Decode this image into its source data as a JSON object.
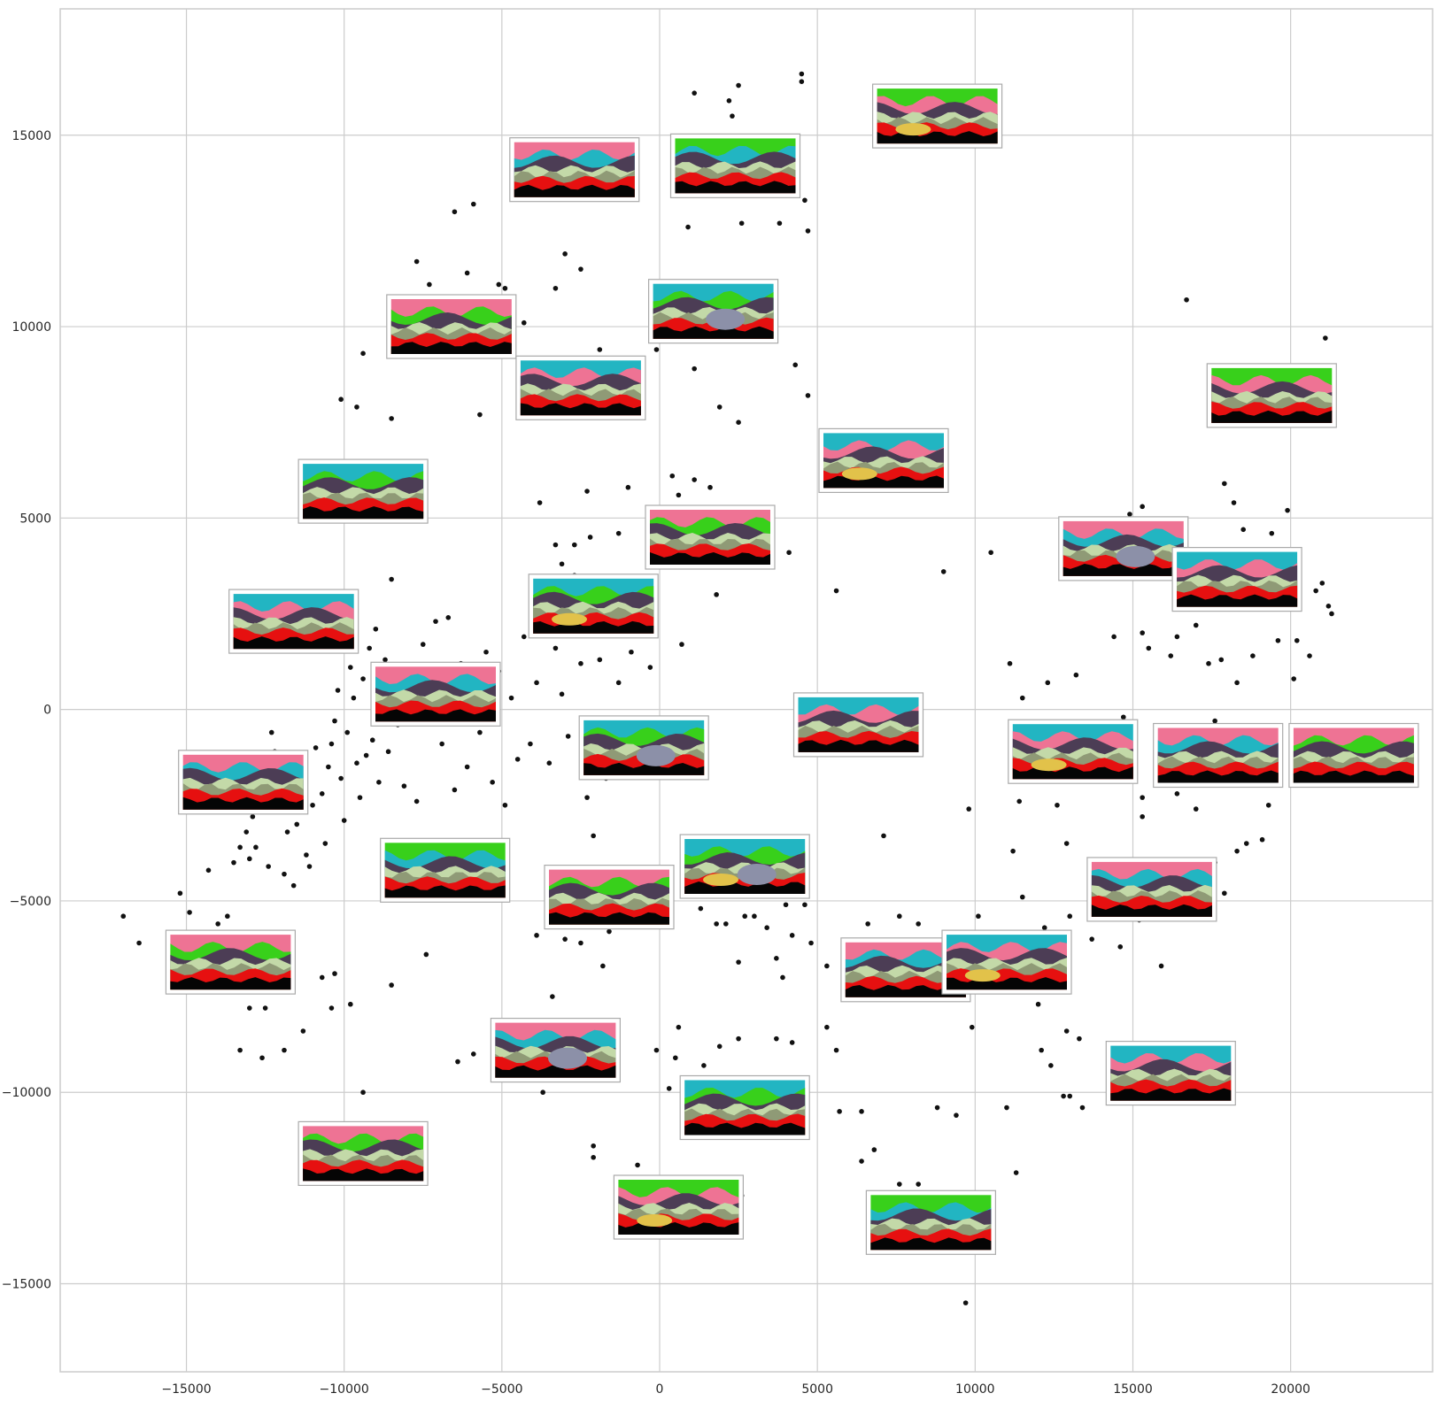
{
  "chart_data": {
    "type": "scatter",
    "title": "",
    "xlabel": "",
    "ylabel": "",
    "xlim": [
      -19000,
      24500
    ],
    "ylim": [
      -17300,
      18300
    ],
    "grid": true,
    "x_ticks": [
      -15000,
      -10000,
      -5000,
      0,
      5000,
      10000,
      15000,
      20000
    ],
    "y_ticks": [
      -15000,
      -10000,
      -5000,
      0,
      5000,
      10000,
      15000
    ],
    "x_tick_labels": [
      "−15000",
      "−10000",
      "−5000",
      "0",
      "5000",
      "10000",
      "15000",
      "20000"
    ],
    "y_tick_labels": [
      "−15000",
      "−10000",
      "−5000",
      "0",
      "5000",
      "10000",
      "15000"
    ],
    "colors": {
      "background": "#ffffff",
      "grid": "#cccccc",
      "axes_edge": "#cccccc",
      "point": "#111111",
      "thumbnail_frame": "#aaaaaa",
      "palette": {
        "sky_pink": "#ee7394",
        "sky_teal": "#22b5c2",
        "tree_green": "#38d01b",
        "mountain_purple": "#4c3d55",
        "grass_light": "#c3d9a8",
        "field_olive": "#8f9a76",
        "water_red": "#e61010",
        "ground_black": "#050505",
        "rock_slate": "#8c90a8",
        "sand_yellow": "#e2c24a"
      }
    },
    "points": [
      [
        -17000,
        -5400
      ],
      [
        -16500,
        -6100
      ],
      [
        -15200,
        -4800
      ],
      [
        -14900,
        -5300
      ],
      [
        -14300,
        -4200
      ],
      [
        -14000,
        -5600
      ],
      [
        -13700,
        -5400
      ],
      [
        -13500,
        -4000
      ],
      [
        -13300,
        -3600
      ],
      [
        -13100,
        -3200
      ],
      [
        -13000,
        -3900
      ],
      [
        -12900,
        -2800
      ],
      [
        -12800,
        -3600
      ],
      [
        -12600,
        -2100
      ],
      [
        -12400,
        -4100
      ],
      [
        -12300,
        -600
      ],
      [
        -12200,
        -1100
      ],
      [
        -12100,
        -2600
      ],
      [
        -12000,
        -1700
      ],
      [
        -11900,
        -4300
      ],
      [
        -11800,
        -3200
      ],
      [
        -11700,
        -2400
      ],
      [
        -11600,
        -4600
      ],
      [
        -11500,
        -3000
      ],
      [
        -11400,
        -1400
      ],
      [
        -11300,
        -2000
      ],
      [
        -11200,
        -3800
      ],
      [
        -11100,
        -4100
      ],
      [
        -11000,
        -2500
      ],
      [
        -10900,
        -1000
      ],
      [
        -10700,
        -2200
      ],
      [
        -10600,
        -3500
      ],
      [
        -10500,
        -1500
      ],
      [
        -10400,
        -900
      ],
      [
        -10300,
        -300
      ],
      [
        -10200,
        500
      ],
      [
        -10100,
        -1800
      ],
      [
        -10000,
        -2900
      ],
      [
        -9900,
        -600
      ],
      [
        -9800,
        1100
      ],
      [
        -9700,
        300
      ],
      [
        -9600,
        -1400
      ],
      [
        -9500,
        -2300
      ],
      [
        -9400,
        800
      ],
      [
        -9300,
        -1200
      ],
      [
        -9200,
        1600
      ],
      [
        -9100,
        -800
      ],
      [
        -9000,
        2100
      ],
      [
        -8900,
        -1900
      ],
      [
        -8800,
        -300
      ],
      [
        -8700,
        1300
      ],
      [
        -8600,
        -1100
      ],
      [
        -8500,
        3400
      ],
      [
        -8300,
        -400
      ],
      [
        -8100,
        -2000
      ],
      [
        -7900,
        600
      ],
      [
        -7700,
        -2400
      ],
      [
        -7500,
        1700
      ],
      [
        -7300,
        -300
      ],
      [
        -7100,
        2300
      ],
      [
        -6900,
        -900
      ],
      [
        -6700,
        2400
      ],
      [
        -6500,
        -2100
      ],
      [
        -6300,
        1200
      ],
      [
        -6100,
        -1500
      ],
      [
        -5900,
        800
      ],
      [
        -5700,
        -600
      ],
      [
        -5500,
        1500
      ],
      [
        -5300,
        -1900
      ],
      [
        -5100,
        1000
      ],
      [
        -4900,
        -2500
      ],
      [
        -4700,
        300
      ],
      [
        -4500,
        -1300
      ],
      [
        -4300,
        1900
      ],
      [
        -4100,
        -900
      ],
      [
        -3900,
        700
      ],
      [
        -3700,
        2600
      ],
      [
        -3500,
        -1400
      ],
      [
        -3300,
        1600
      ],
      [
        -3100,
        400
      ],
      [
        -2900,
        -700
      ],
      [
        -2700,
        3500
      ],
      [
        -2500,
        1200
      ],
      [
        -2300,
        -2300
      ],
      [
        -2100,
        -3300
      ],
      [
        -1900,
        1300
      ],
      [
        -1700,
        -1800
      ],
      [
        -1500,
        -500
      ],
      [
        -1300,
        700
      ],
      [
        -1100,
        -1300
      ],
      [
        -900,
        1500
      ],
      [
        -700,
        -800
      ],
      [
        -500,
        2500
      ],
      [
        -300,
        1100
      ],
      [
        -100,
        -900
      ],
      [
        -12600,
        -9100
      ],
      [
        -11900,
        -8900
      ],
      [
        -11300,
        -8400
      ],
      [
        -10700,
        -7000
      ],
      [
        -10400,
        -7800
      ],
      [
        -9800,
        -7700
      ],
      [
        -9400,
        -10000
      ],
      [
        -8500,
        -7200
      ],
      [
        -7400,
        -6400
      ],
      [
        -6400,
        -9200
      ],
      [
        -5900,
        -9000
      ],
      [
        -3700,
        -10000
      ],
      [
        -2100,
        -11700
      ],
      [
        -10300,
        -6900
      ],
      [
        -13000,
        -7800
      ],
      [
        -12500,
        -7800
      ],
      [
        -13300,
        -8900
      ],
      [
        -10100,
        8100
      ],
      [
        -9600,
        7900
      ],
      [
        -9400,
        9300
      ],
      [
        -8500,
        7600
      ],
      [
        -7700,
        11700
      ],
      [
        -7300,
        11100
      ],
      [
        -6500,
        13000
      ],
      [
        -6100,
        11400
      ],
      [
        -5900,
        13200
      ],
      [
        -5100,
        11100
      ],
      [
        -4300,
        10100
      ],
      [
        -3300,
        11000
      ],
      [
        -3000,
        11900
      ],
      [
        -2500,
        11500
      ],
      [
        -5700,
        7700
      ],
      [
        -4900,
        11000
      ],
      [
        -1900,
        9400
      ],
      [
        -2400,
        8400
      ],
      [
        1100,
        16100
      ],
      [
        2200,
        15900
      ],
      [
        2300,
        15500
      ],
      [
        2500,
        16300
      ],
      [
        4500,
        16400
      ],
      [
        4500,
        16600
      ],
      [
        3800,
        12700
      ],
      [
        4600,
        13300
      ],
      [
        4700,
        12500
      ],
      [
        900,
        12600
      ],
      [
        2600,
        12700
      ],
      [
        1100,
        8900
      ],
      [
        1900,
        7900
      ],
      [
        2500,
        7500
      ],
      [
        4300,
        9000
      ],
      [
        4700,
        8200
      ],
      [
        -100,
        9400
      ],
      [
        400,
        6100
      ],
      [
        -1000,
        5800
      ],
      [
        -1300,
        4600
      ],
      [
        -2200,
        4500
      ],
      [
        -2700,
        4300
      ],
      [
        -3100,
        3800
      ],
      [
        -3300,
        4300
      ],
      [
        -3800,
        5400
      ],
      [
        -2300,
        5700
      ],
      [
        1100,
        6000
      ],
      [
        1600,
        5800
      ],
      [
        600,
        5600
      ],
      [
        4100,
        4100
      ],
      [
        5600,
        3100
      ],
      [
        9000,
        3600
      ],
      [
        10500,
        4100
      ],
      [
        1800,
        3000
      ],
      [
        700,
        1700
      ],
      [
        11100,
        1200
      ],
      [
        11500,
        300
      ],
      [
        12300,
        700
      ],
      [
        13200,
        900
      ],
      [
        14400,
        1900
      ],
      [
        15300,
        2000
      ],
      [
        15500,
        1600
      ],
      [
        16400,
        1900
      ],
      [
        16200,
        1400
      ],
      [
        17000,
        2200
      ],
      [
        17400,
        1200
      ],
      [
        17800,
        1300
      ],
      [
        18300,
        700
      ],
      [
        18800,
        1400
      ],
      [
        19600,
        1800
      ],
      [
        20200,
        1800
      ],
      [
        20600,
        1400
      ],
      [
        21000,
        3300
      ],
      [
        21200,
        2700
      ],
      [
        21300,
        2500
      ],
      [
        20800,
        3100
      ],
      [
        19400,
        4600
      ],
      [
        18500,
        4700
      ],
      [
        17900,
        5900
      ],
      [
        18200,
        5400
      ],
      [
        18700,
        3800
      ],
      [
        19900,
        5200
      ],
      [
        15300,
        5300
      ],
      [
        14900,
        5100
      ],
      [
        16700,
        10700
      ],
      [
        21100,
        9700
      ],
      [
        20100,
        800
      ],
      [
        14700,
        -200
      ],
      [
        15000,
        -1800
      ],
      [
        15300,
        -2300
      ],
      [
        15300,
        -2800
      ],
      [
        16400,
        -2200
      ],
      [
        16700,
        -1300
      ],
      [
        17000,
        -2600
      ],
      [
        17600,
        -300
      ],
      [
        18000,
        -1800
      ],
      [
        18300,
        -3700
      ],
      [
        18600,
        -3500
      ],
      [
        19100,
        -3400
      ],
      [
        19300,
        -2500
      ],
      [
        17600,
        -4000
      ],
      [
        17900,
        -4800
      ],
      [
        12900,
        -3500
      ],
      [
        12600,
        -2500
      ],
      [
        11400,
        -2400
      ],
      [
        11200,
        -3700
      ],
      [
        11500,
        -4900
      ],
      [
        12200,
        -5700
      ],
      [
        13000,
        -5400
      ],
      [
        13700,
        -6000
      ],
      [
        14600,
        -6200
      ],
      [
        15100,
        -4400
      ],
      [
        15900,
        -6700
      ],
      [
        15200,
        -5500
      ],
      [
        10100,
        -5400
      ],
      [
        10200,
        -6300
      ],
      [
        9200,
        -6400
      ],
      [
        8600,
        -6500
      ],
      [
        8200,
        -5600
      ],
      [
        7600,
        -5400
      ],
      [
        6600,
        -5600
      ],
      [
        5900,
        -7000
      ],
      [
        5300,
        -6700
      ],
      [
        4800,
        -6100
      ],
      [
        4200,
        -5900
      ],
      [
        3900,
        -7000
      ],
      [
        3700,
        -6500
      ],
      [
        3400,
        -5700
      ],
      [
        3000,
        -5400
      ],
      [
        2700,
        -5400
      ],
      [
        2100,
        -5600
      ],
      [
        1800,
        -5600
      ],
      [
        1300,
        -5200
      ],
      [
        4000,
        -5100
      ],
      [
        4600,
        -5100
      ],
      [
        7100,
        -3300
      ],
      [
        9800,
        -2600
      ],
      [
        2500,
        -6600
      ],
      [
        2500,
        -8600
      ],
      [
        1900,
        -8800
      ],
      [
        1400,
        -9300
      ],
      [
        600,
        -8300
      ],
      [
        500,
        -9100
      ],
      [
        300,
        -9900
      ],
      [
        1600,
        -11000
      ],
      [
        3700,
        -8600
      ],
      [
        4200,
        -8700
      ],
      [
        5300,
        -8300
      ],
      [
        5600,
        -8900
      ],
      [
        5700,
        -10500
      ],
      [
        6400,
        -10500
      ],
      [
        6800,
        -11500
      ],
      [
        6400,
        -11800
      ],
      [
        7600,
        -12400
      ],
      [
        8800,
        -10400
      ],
      [
        9400,
        -10600
      ],
      [
        8200,
        -12400
      ],
      [
        11000,
        -10400
      ],
      [
        11300,
        -12100
      ],
      [
        12100,
        -8900
      ],
      [
        12400,
        -9300
      ],
      [
        12800,
        -10100
      ],
      [
        13300,
        -8600
      ],
      [
        12900,
        -8400
      ],
      [
        13000,
        -10100
      ],
      [
        13400,
        -10400
      ],
      [
        12000,
        -7700
      ],
      [
        11200,
        -7300
      ],
      [
        10700,
        -7100
      ],
      [
        9900,
        -8300
      ],
      [
        9700,
        -15500
      ],
      [
        -100,
        -8900
      ],
      [
        -700,
        -11900
      ],
      [
        1300,
        -12800
      ],
      [
        2600,
        -12700
      ],
      [
        -2100,
        -11400
      ],
      [
        -1800,
        -6700
      ],
      [
        -2500,
        -6100
      ],
      [
        -3400,
        -7500
      ],
      [
        -3900,
        -5900
      ],
      [
        -3000,
        -6000
      ],
      [
        -1600,
        -5800
      ]
    ],
    "thumbnails": [
      {
        "x": -2700,
        "y": 14100,
        "sky": "sky_pink"
      },
      {
        "x": 2400,
        "y": 14200,
        "sky": "tree_green"
      },
      {
        "x": 8800,
        "y": 15500,
        "sky": "tree_green"
      },
      {
        "x": -6600,
        "y": 10000,
        "sky": "sky_pink"
      },
      {
        "x": 1700,
        "y": 10400,
        "sky": "sky_teal"
      },
      {
        "x": -2500,
        "y": 8400,
        "sky": "sky_teal"
      },
      {
        "x": 19400,
        "y": 8200,
        "sky": "tree_green"
      },
      {
        "x": 7100,
        "y": 6500,
        "sky": "sky_teal"
      },
      {
        "x": -9400,
        "y": 5700,
        "sky": "sky_teal"
      },
      {
        "x": 1600,
        "y": 4500,
        "sky": "sky_pink"
      },
      {
        "x": 14700,
        "y": 4200,
        "sky": "sky_pink"
      },
      {
        "x": 18300,
        "y": 3400,
        "sky": "sky_teal"
      },
      {
        "x": -2100,
        "y": 2700,
        "sky": "sky_teal"
      },
      {
        "x": -11600,
        "y": 2300,
        "sky": "sky_teal"
      },
      {
        "x": -7100,
        "y": 400,
        "sky": "sky_pink"
      },
      {
        "x": 6300,
        "y": -400,
        "sky": "sky_teal"
      },
      {
        "x": -500,
        "y": -1000,
        "sky": "sky_teal"
      },
      {
        "x": 13100,
        "y": -1100,
        "sky": "sky_teal"
      },
      {
        "x": 17700,
        "y": -1200,
        "sky": "sky_pink"
      },
      {
        "x": 22000,
        "y": -1200,
        "sky": "sky_pink"
      },
      {
        "x": -13200,
        "y": -1900,
        "sky": "sky_pink"
      },
      {
        "x": -6800,
        "y": -4200,
        "sky": "tree_green"
      },
      {
        "x": 2700,
        "y": -4100,
        "sky": "sky_teal"
      },
      {
        "x": -1600,
        "y": -4900,
        "sky": "sky_pink"
      },
      {
        "x": 15600,
        "y": -4700,
        "sky": "sky_pink"
      },
      {
        "x": -13600,
        "y": -6600,
        "sky": "sky_pink"
      },
      {
        "x": 7800,
        "y": -6800,
        "sky": "sky_pink"
      },
      {
        "x": 11000,
        "y": -6600,
        "sky": "sky_teal"
      },
      {
        "x": -3300,
        "y": -8900,
        "sky": "sky_pink"
      },
      {
        "x": 16200,
        "y": -9500,
        "sky": "sky_teal"
      },
      {
        "x": 2700,
        "y": -10400,
        "sky": "sky_teal"
      },
      {
        "x": -9400,
        "y": -11600,
        "sky": "sky_pink"
      },
      {
        "x": 600,
        "y": -13000,
        "sky": "tree_green"
      },
      {
        "x": 8600,
        "y": -13400,
        "sky": "tree_green"
      }
    ]
  }
}
